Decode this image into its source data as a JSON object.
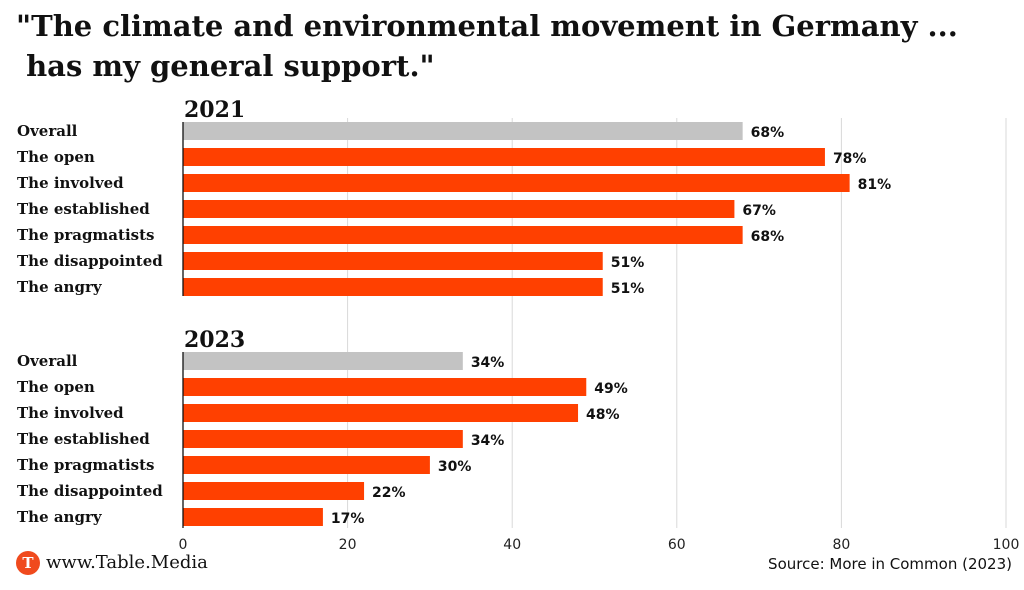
{
  "title_lines": [
    "\"The climate and environmental movement in Germany ...",
    " has my general support.\""
  ],
  "footer": {
    "logo_letter": "T",
    "site": "www.Table.Media",
    "source": "Source: More in Common (2023)"
  },
  "colors": {
    "overall": "#c3c3c3",
    "segment": "#ff4000",
    "grid": "#d9d9d9",
    "axis": "#111111"
  },
  "chart_data": {
    "type": "bar",
    "orientation": "horizontal",
    "title": "\"The climate and environmental movement in Germany ... has my general support.\"",
    "value_suffix": "%",
    "xlim": [
      0,
      100
    ],
    "xticks": [
      0,
      20,
      40,
      60,
      80,
      100
    ],
    "grid": true,
    "groups": [
      {
        "label": "2021",
        "categories": [
          "Overall",
          "The open",
          "The involved",
          "The established",
          "The pragmatists",
          "The disappointed",
          "The angry"
        ],
        "values": [
          68,
          78,
          81,
          67,
          68,
          51,
          51
        ]
      },
      {
        "label": "2023",
        "categories": [
          "Overall",
          "The open",
          "The involved",
          "The established",
          "The pragmatists",
          "The disappointed",
          "The angry"
        ],
        "values": [
          34,
          49,
          48,
          34,
          30,
          22,
          17
        ]
      }
    ]
  }
}
